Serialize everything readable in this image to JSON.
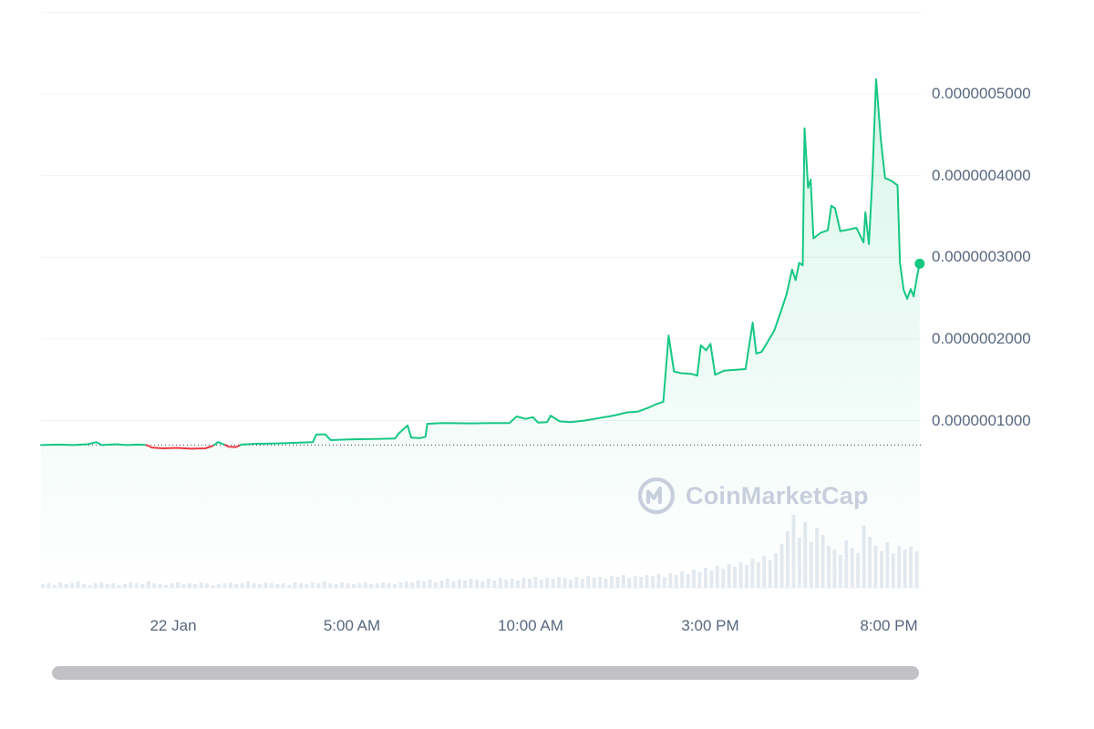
{
  "branding": {
    "watermark_text": "CoinMarketCap"
  },
  "chart_data": {
    "type": "line",
    "title": "",
    "x_axis": {
      "labels": [
        "22 Jan",
        "5:00 AM",
        "10:00 AM",
        "3:00 PM",
        "8:00 PM"
      ],
      "tick_hours": [
        3.7,
        8.7,
        13.7,
        18.7,
        23.7
      ],
      "duration_hours": 24.6
    },
    "y_axis": {
      "labels": [
        "0.0000005000",
        "0.0000004000",
        "0.0000003000",
        "0.0000002000",
        "0.0000001000"
      ],
      "label_values": [
        50,
        40,
        30,
        20,
        10
      ],
      "gridline_values": [
        60,
        50,
        40,
        30,
        20,
        10
      ],
      "value_scale": "1e-8"
    },
    "open_price": 7.0,
    "last_price": 29.2,
    "series": [
      {
        "name": "price",
        "points": [
          [
            0,
            7.0
          ],
          [
            0.5,
            7.05
          ],
          [
            0.9,
            7.0
          ],
          [
            1.3,
            7.1
          ],
          [
            1.55,
            7.35
          ],
          [
            1.7,
            7.0
          ],
          [
            2.1,
            7.1
          ],
          [
            2.4,
            7.0
          ],
          [
            2.7,
            7.05
          ],
          [
            2.95,
            7.0
          ],
          [
            3.1,
            6.7
          ],
          [
            3.4,
            6.6
          ],
          [
            3.8,
            6.65
          ],
          [
            4.2,
            6.55
          ],
          [
            4.6,
            6.6
          ],
          [
            4.8,
            6.9
          ],
          [
            4.95,
            7.35
          ],
          [
            5.1,
            7.1
          ],
          [
            5.25,
            6.8
          ],
          [
            5.45,
            6.75
          ],
          [
            5.6,
            7.05
          ],
          [
            6.0,
            7.15
          ],
          [
            6.6,
            7.2
          ],
          [
            7.2,
            7.3
          ],
          [
            7.6,
            7.35
          ],
          [
            7.7,
            8.3
          ],
          [
            7.95,
            8.3
          ],
          [
            8.1,
            7.6
          ],
          [
            8.7,
            7.7
          ],
          [
            9.3,
            7.75
          ],
          [
            9.9,
            7.8
          ],
          [
            10.0,
            8.4
          ],
          [
            10.25,
            9.4
          ],
          [
            10.35,
            7.9
          ],
          [
            10.6,
            7.85
          ],
          [
            10.75,
            8.0
          ],
          [
            10.8,
            9.6
          ],
          [
            11.2,
            9.7
          ],
          [
            12.0,
            9.65
          ],
          [
            12.6,
            9.7
          ],
          [
            13.1,
            9.7
          ],
          [
            13.3,
            10.5
          ],
          [
            13.55,
            10.2
          ],
          [
            13.75,
            10.4
          ],
          [
            13.9,
            9.75
          ],
          [
            14.15,
            9.8
          ],
          [
            14.25,
            10.6
          ],
          [
            14.5,
            9.9
          ],
          [
            14.8,
            9.8
          ],
          [
            15.2,
            10.0
          ],
          [
            15.6,
            10.3
          ],
          [
            16.0,
            10.6
          ],
          [
            16.4,
            11.0
          ],
          [
            16.7,
            11.1
          ],
          [
            17.0,
            11.6
          ],
          [
            17.2,
            12.0
          ],
          [
            17.4,
            12.3
          ],
          [
            17.55,
            20.4
          ],
          [
            17.7,
            16.0
          ],
          [
            17.9,
            15.8
          ],
          [
            18.2,
            15.7
          ],
          [
            18.35,
            15.5
          ],
          [
            18.45,
            19.2
          ],
          [
            18.6,
            18.6
          ],
          [
            18.72,
            19.4
          ],
          [
            18.85,
            15.6
          ],
          [
            19.1,
            16.1
          ],
          [
            19.4,
            16.2
          ],
          [
            19.7,
            16.3
          ],
          [
            19.9,
            22.0
          ],
          [
            20.0,
            18.2
          ],
          [
            20.15,
            18.4
          ],
          [
            20.3,
            19.5
          ],
          [
            20.5,
            21.0
          ],
          [
            20.7,
            23.5
          ],
          [
            20.85,
            25.5
          ],
          [
            21.0,
            28.5
          ],
          [
            21.1,
            27.2
          ],
          [
            21.2,
            29.3
          ],
          [
            21.3,
            29.0
          ],
          [
            21.35,
            45.8
          ],
          [
            21.45,
            38.5
          ],
          [
            21.52,
            39.5
          ],
          [
            21.6,
            32.3
          ],
          [
            21.8,
            33.0
          ],
          [
            22.0,
            33.3
          ],
          [
            22.1,
            36.3
          ],
          [
            22.2,
            36.0
          ],
          [
            22.35,
            33.2
          ],
          [
            22.6,
            33.4
          ],
          [
            22.8,
            33.6
          ],
          [
            23.0,
            31.8
          ],
          [
            23.05,
            35.5
          ],
          [
            23.15,
            31.6
          ],
          [
            23.25,
            40.0
          ],
          [
            23.35,
            51.8
          ],
          [
            23.48,
            44.5
          ],
          [
            23.6,
            39.7
          ],
          [
            23.8,
            39.3
          ],
          [
            23.95,
            38.8
          ],
          [
            24.02,
            29.3
          ],
          [
            24.12,
            26.0
          ],
          [
            24.22,
            24.9
          ],
          [
            24.32,
            26.1
          ],
          [
            24.4,
            25.2
          ],
          [
            24.5,
            27.8
          ],
          [
            24.57,
            29.2
          ]
        ]
      }
    ],
    "volume_bars": [
      4,
      5,
      3,
      6,
      4,
      5,
      7,
      4,
      3,
      5,
      6,
      4,
      5,
      3,
      4,
      6,
      5,
      4,
      7,
      5,
      4,
      3,
      5,
      6,
      4,
      5,
      4,
      6,
      5,
      3,
      4,
      5,
      6,
      4,
      5,
      7,
      5,
      4,
      6,
      5,
      4,
      5,
      3,
      6,
      5,
      4,
      6,
      5,
      7,
      5,
      4,
      6,
      5,
      4,
      5,
      6,
      4,
      5,
      6,
      5,
      4,
      6,
      7,
      6,
      8,
      7,
      9,
      6,
      8,
      10,
      7,
      9,
      8,
      10,
      9,
      7,
      10,
      8,
      11,
      9,
      10,
      8,
      11,
      10,
      12,
      9,
      11,
      10,
      12,
      11,
      9,
      12,
      10,
      13,
      11,
      12,
      10,
      13,
      12,
      14,
      11,
      13,
      12,
      14,
      13,
      15,
      12,
      16,
      14,
      18,
      15,
      20,
      17,
      22,
      19,
      24,
      21,
      26,
      23,
      28,
      25,
      32,
      28,
      35,
      30,
      38,
      48,
      62,
      80,
      55,
      72,
      50,
      66,
      58,
      46,
      42,
      36,
      52,
      44,
      38,
      68,
      56,
      46,
      40,
      50,
      38,
      46,
      42,
      45,
      40
    ],
    "colors": {
      "up": "#16c784",
      "down": "#ea3943",
      "volume": "#e4e9f0",
      "grid": "#eff2f5",
      "open_line": "#222531",
      "axis_text": "#58667e",
      "watermark": "#c7cfdd",
      "scrollbar": "#c2c2c6"
    }
  }
}
